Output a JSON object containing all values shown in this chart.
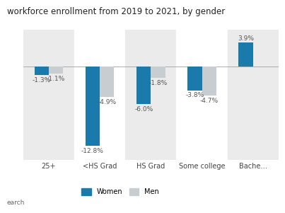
{
  "title": "workforce enrollment from 2019 to 2021, by gender",
  "categories": [
    "25+",
    "<HS Grad",
    "HS Grad",
    "Some college",
    "Bache…"
  ],
  "women_values": [
    -1.3,
    -12.8,
    -6.0,
    -3.8,
    3.9
  ],
  "men_values": [
    -1.1,
    -4.9,
    -1.8,
    -4.7,
    0.0
  ],
  "women_color": "#1a7aab",
  "men_color": "#c8cdd1",
  "bar_bg_colors": [
    "#ebebeb",
    "#ffffff",
    "#ebebeb",
    "#ffffff",
    "#ebebeb"
  ],
  "title_fontsize": 8.5,
  "label_fontsize": 6.5,
  "tick_fontsize": 7,
  "source_text": "earch",
  "ylim": [
    -15,
    6
  ],
  "bar_width": 0.28
}
